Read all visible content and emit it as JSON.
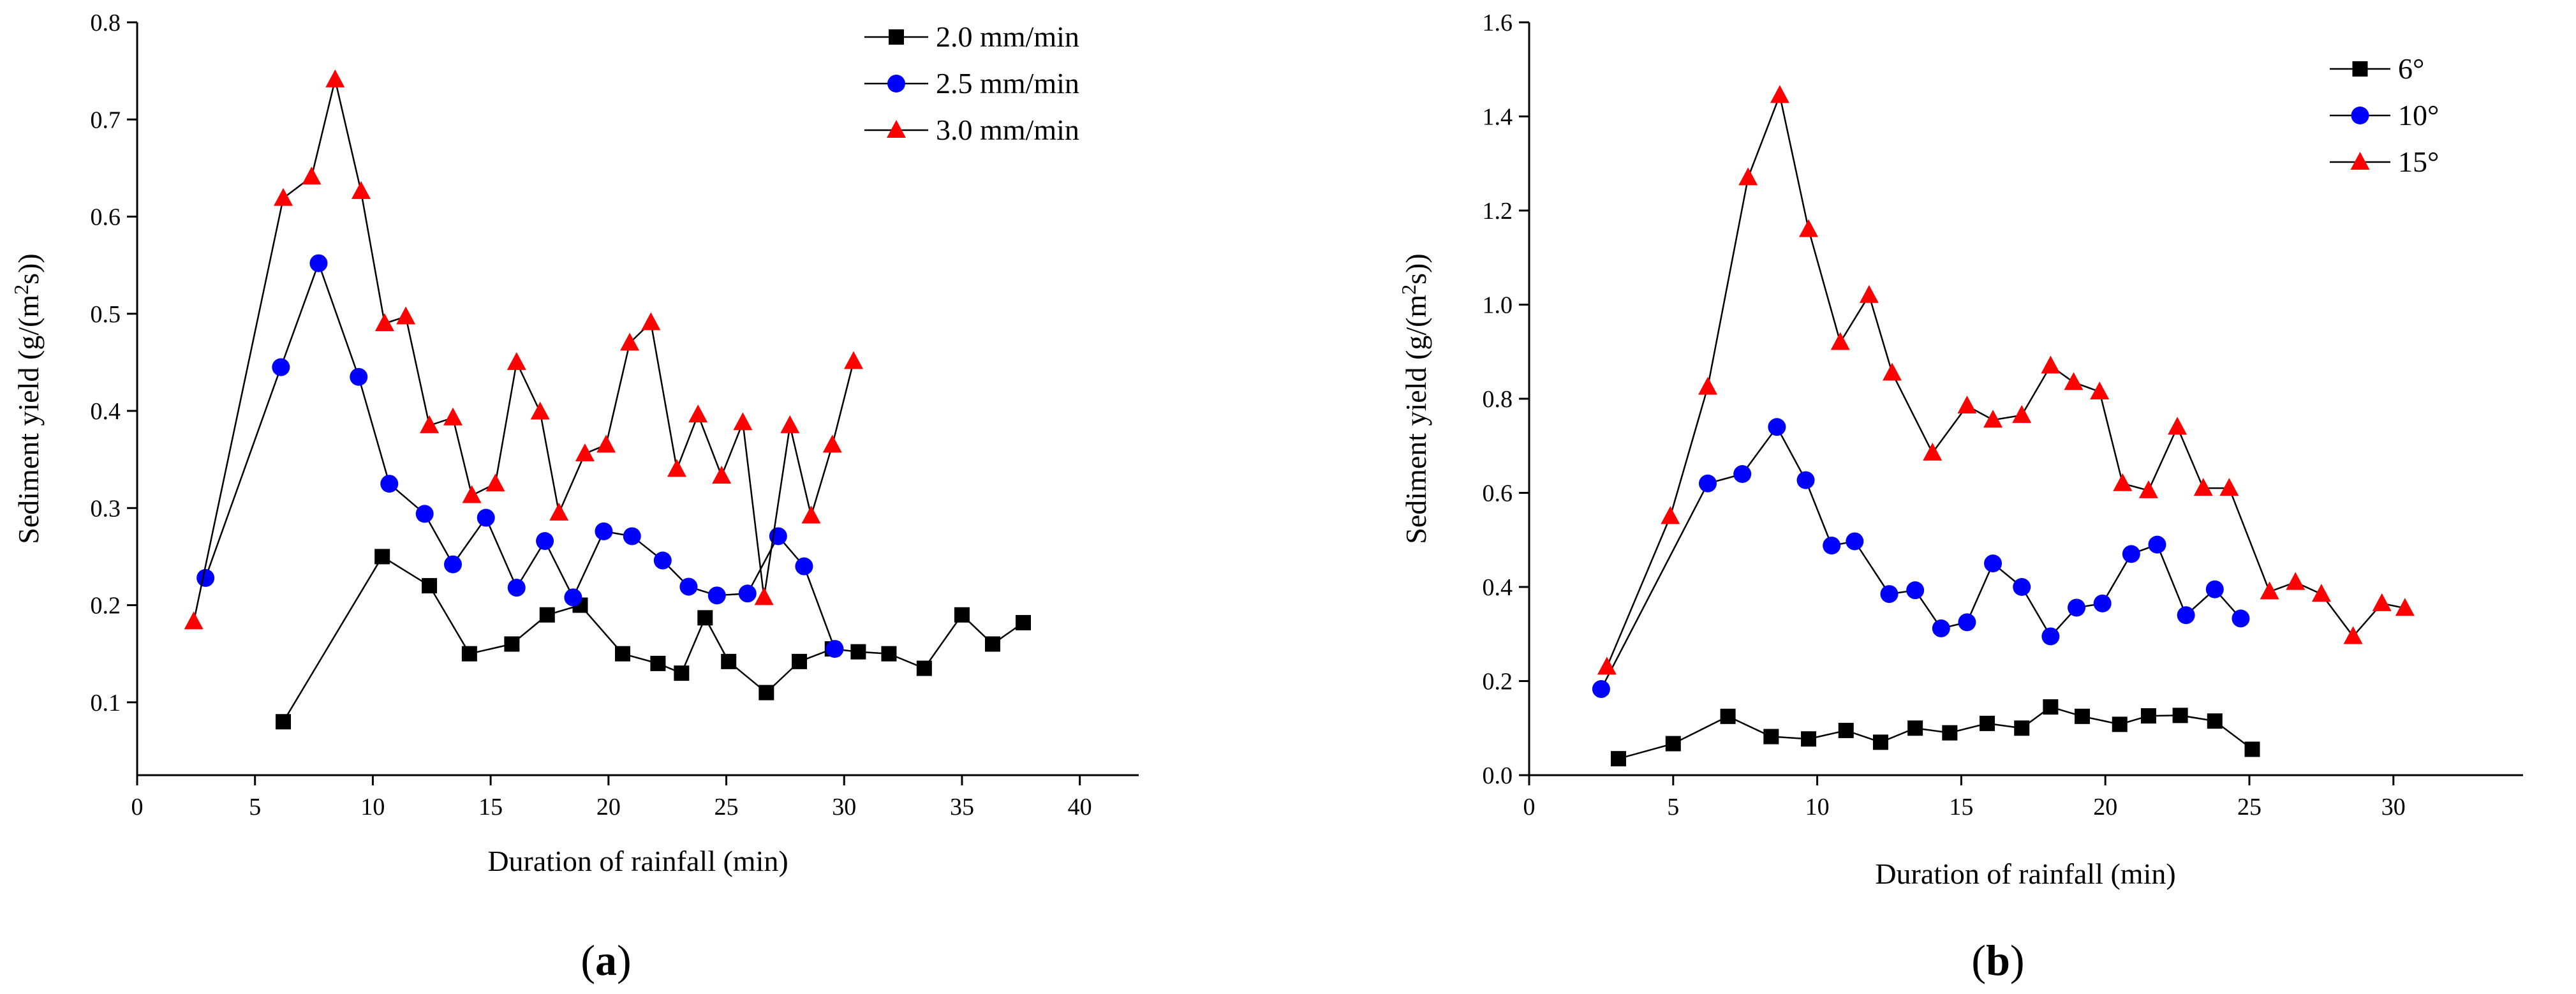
{
  "chart_data": [
    {
      "type": "line",
      "panel_label": "a",
      "xlabel": "Duration of rainfall (min)",
      "ylabel": "Sediment yield (g/(m²s))",
      "xlim": [
        0,
        42.5
      ],
      "ylim": [
        0.025,
        0.8
      ],
      "xticks": [
        0,
        5,
        10,
        15,
        20,
        25,
        30,
        35,
        40
      ],
      "yticks": [
        0.1,
        0.2,
        0.3,
        0.4,
        0.5,
        0.6,
        0.7,
        0.8
      ],
      "ytick_decimals": 1,
      "legend_position": "top-right",
      "series": [
        {
          "name": "2.0 mm/min",
          "marker": "square",
          "color": "#000000",
          "x": [
            6.2,
            10.4,
            12.4,
            14.1,
            15.9,
            17.4,
            18.8,
            20.6,
            22.1,
            23.1,
            24.1,
            25.1,
            26.7,
            28.1,
            29.5,
            30.6,
            31.9,
            33.4,
            35.0,
            36.3,
            37.6
          ],
          "y": [
            0.08,
            0.25,
            0.22,
            0.15,
            0.16,
            0.19,
            0.2,
            0.15,
            0.14,
            0.13,
            0.187,
            0.142,
            0.11,
            0.142,
            0.155,
            0.152,
            0.15,
            0.135,
            0.19,
            0.16,
            0.182
          ]
        },
        {
          "name": "2.5 mm/min",
          "marker": "circle",
          "color": "#0000ff",
          "x": [
            2.9,
            6.1,
            7.7,
            9.4,
            10.7,
            12.2,
            13.4,
            14.8,
            16.1,
            17.3,
            18.5,
            19.8,
            21.0,
            22.3,
            23.4,
            24.6,
            25.9,
            27.2,
            28.3,
            29.6
          ],
          "y": [
            0.228,
            0.445,
            0.552,
            0.435,
            0.325,
            0.294,
            0.242,
            0.29,
            0.218,
            0.266,
            0.208,
            0.276,
            0.271,
            0.246,
            0.219,
            0.21,
            0.212,
            0.271,
            0.24,
            0.155
          ]
        },
        {
          "name": "3.0 mm/min",
          "marker": "triangle",
          "color": "#ff0000",
          "x": [
            2.4,
            6.2,
            7.4,
            8.4,
            9.5,
            10.5,
            11.4,
            12.4,
            13.4,
            14.2,
            15.2,
            16.1,
            17.1,
            17.9,
            19.0,
            19.9,
            20.9,
            21.8,
            22.9,
            23.8,
            24.8,
            25.7,
            26.6,
            27.7,
            28.6,
            29.5,
            30.4
          ],
          "y": [
            0.183,
            0.619,
            0.641,
            0.741,
            0.626,
            0.49,
            0.497,
            0.385,
            0.393,
            0.313,
            0.325,
            0.45,
            0.399,
            0.295,
            0.356,
            0.365,
            0.47,
            0.491,
            0.34,
            0.396,
            0.333,
            0.388,
            0.208,
            0.385,
            0.292,
            0.365,
            0.451
          ]
        }
      ]
    },
    {
      "type": "line",
      "panel_label": "b",
      "xlabel": "Duration of rainfall (min)",
      "ylabel": "Sediment yield (g/(m²s))",
      "xlim": [
        0,
        34.5
      ],
      "ylim": [
        0,
        1.6
      ],
      "xticks": [
        0,
        5,
        10,
        15,
        20,
        25,
        30
      ],
      "yticks": [
        0.0,
        0.2,
        0.4,
        0.6,
        0.8,
        1.0,
        1.2,
        1.4,
        1.6
      ],
      "ytick_decimals": 1,
      "legend_position": "top-right",
      "series": [
        {
          "name": "6°",
          "marker": "square",
          "color": "#000000",
          "x": [
            3.1,
            5.0,
            6.9,
            8.4,
            9.7,
            11.0,
            12.2,
            13.4,
            14.6,
            15.9,
            17.1,
            18.1,
            19.2,
            20.5,
            21.5,
            22.6,
            23.8,
            25.1
          ],
          "y": [
            0.035,
            0.067,
            0.125,
            0.082,
            0.077,
            0.095,
            0.07,
            0.1,
            0.09,
            0.11,
            0.1,
            0.145,
            0.125,
            0.108,
            0.126,
            0.127,
            0.115,
            0.055
          ]
        },
        {
          "name": "10°",
          "marker": "circle",
          "color": "#0000ff",
          "x": [
            2.5,
            6.2,
            7.4,
            8.6,
            9.6,
            10.5,
            11.3,
            12.5,
            13.4,
            14.3,
            15.2,
            16.1,
            17.1,
            18.1,
            19.0,
            19.9,
            20.9,
            21.8,
            22.8,
            23.8,
            24.7
          ],
          "y": [
            0.183,
            0.62,
            0.64,
            0.74,
            0.627,
            0.488,
            0.497,
            0.385,
            0.393,
            0.312,
            0.325,
            0.45,
            0.4,
            0.295,
            0.356,
            0.365,
            0.47,
            0.49,
            0.34,
            0.395,
            0.333
          ]
        },
        {
          "name": "15°",
          "marker": "triangle",
          "color": "#ff0000",
          "x": [
            2.7,
            4.9,
            6.2,
            7.6,
            8.7,
            9.7,
            10.8,
            11.8,
            12.6,
            14.0,
            15.2,
            16.1,
            17.1,
            18.1,
            18.9,
            19.8,
            20.6,
            21.5,
            22.5,
            23.4,
            24.3,
            25.7,
            26.6,
            27.5,
            28.6,
            29.6,
            30.4
          ],
          "y": [
            0.23,
            0.55,
            0.825,
            1.27,
            1.445,
            1.16,
            0.92,
            1.02,
            0.855,
            0.685,
            0.785,
            0.755,
            0.765,
            0.87,
            0.835,
            0.815,
            0.62,
            0.605,
            0.74,
            0.61,
            0.61,
            0.39,
            0.41,
            0.385,
            0.295,
            0.365,
            0.355
          ]
        }
      ]
    }
  ]
}
